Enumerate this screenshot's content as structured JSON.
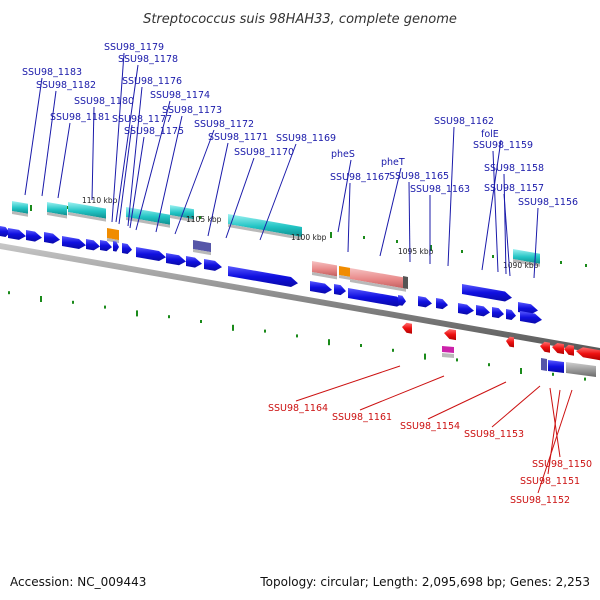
{
  "title": "Streptococcus suis 98HAH33, complete genome",
  "footer": {
    "accession": "Accession: NC_009443",
    "summary": "Topology: circular; Length: 2,095,698 bp; Genes: 2,253"
  },
  "kbp_labels": [
    "1110 kbp",
    "1105 kbp",
    "1100 kbp",
    "1095 kbp",
    "1090 kbp"
  ],
  "genes_top": [
    "SSU98_1183",
    "SSU98_1182",
    "SSU98_1181",
    "SSU98_1180",
    "SSU98_1179",
    "SSU98_1178",
    "SSU98_1177",
    "SSU98_1176",
    "SSU98_1175",
    "SSU98_1174",
    "SSU98_1173",
    "SSU98_1172",
    "SSU98_1171",
    "SSU98_1170",
    "SSU98_1169",
    "pheS",
    "SSU98_1167",
    "pheT",
    "SSU98_1165",
    "SSU98_1163",
    "SSU98_1162",
    "folE",
    "SSU98_1159",
    "SSU98_1158",
    "SSU98_1157",
    "SSU98_1156"
  ],
  "genes_bottom": [
    "SSU98_1164",
    "SSU98_1161",
    "SSU98_1154",
    "SSU98_1153",
    "SSU98_1150",
    "SSU98_1151",
    "SSU98_1152"
  ],
  "colors": {
    "forward": "#1010e0",
    "reverse": "#ee1111",
    "cyan": "#22c4c4",
    "salmon": "#e88888",
    "orange": "#f08c00",
    "backbone": "#777777",
    "tick": "#1a8a1a"
  }
}
